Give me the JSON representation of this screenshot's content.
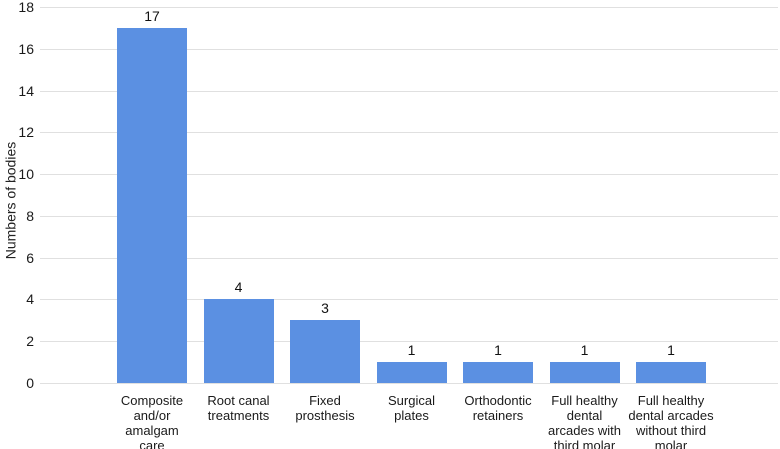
{
  "chart_data": {
    "type": "bar",
    "ylabel": "Numbers of bodies",
    "xlabel": "",
    "ylim": [
      0,
      18
    ],
    "yticks": [
      0,
      2,
      4,
      6,
      8,
      10,
      12,
      14,
      16,
      18
    ],
    "grid": true,
    "legend": "none",
    "bar_color": "#5b90e2",
    "grid_color": "#e0e0e0",
    "categories": [
      "Composite and/or amalgam care",
      "Root canal treatments",
      "Fixed prosthesis",
      "Surgical plates",
      "Orthodontic retainers",
      "Full healthy dental arcades with third molar",
      "Full healthy dental arcades without third molar"
    ],
    "category_lines": [
      [
        "Composite",
        "and/or",
        "amalgam",
        "care"
      ],
      [
        "Root canal",
        "treatments"
      ],
      [
        "Fixed",
        "prosthesis"
      ],
      [
        "Surgical",
        "plates"
      ],
      [
        "Orthodontic",
        "retainers"
      ],
      [
        "Full healthy",
        "dental",
        "arcades with",
        "third molar"
      ],
      [
        "Full healthy",
        "dental arcades",
        "without third",
        "molar"
      ]
    ],
    "values": [
      17,
      4,
      3,
      1,
      1,
      1,
      1
    ]
  }
}
